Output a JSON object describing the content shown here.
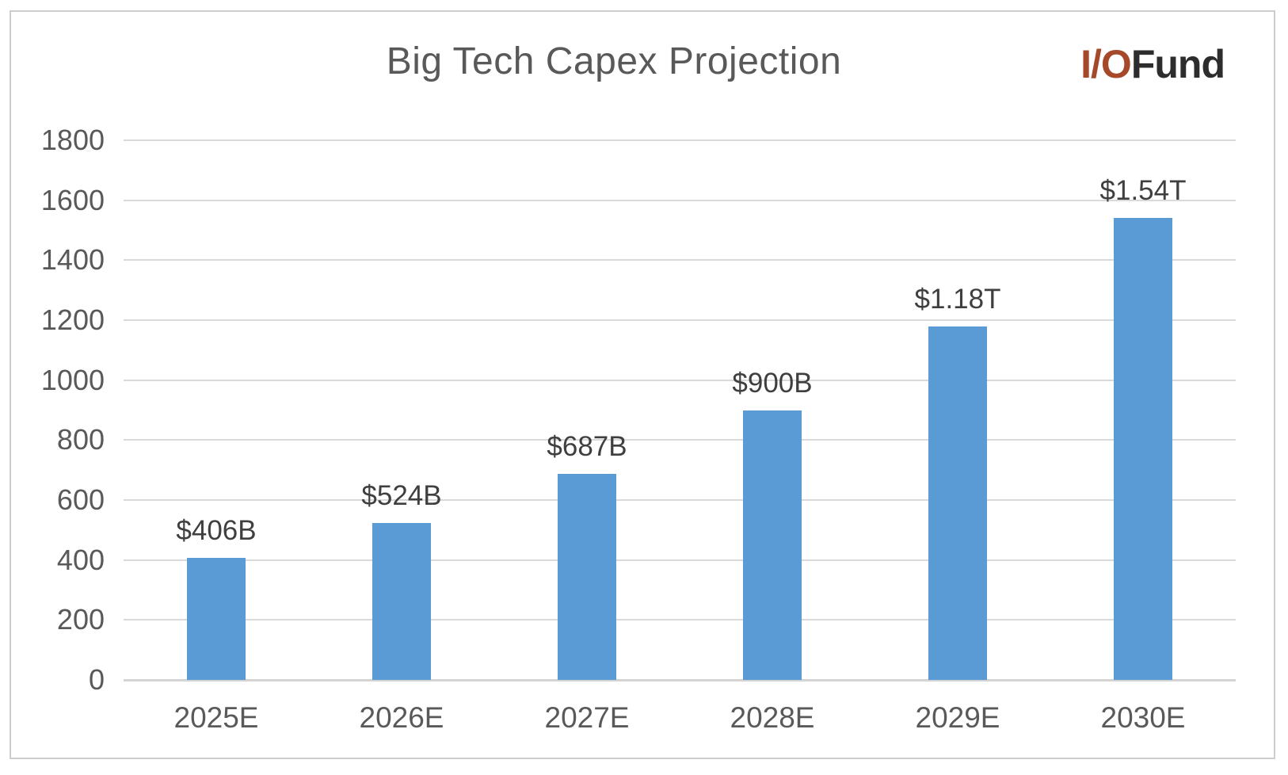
{
  "header": {
    "title": "Big Tech Capex Projection",
    "logo": {
      "part1": "I/O",
      "part2": "Fund",
      "part1_color": "#A5492A",
      "part2_color": "#2D2D2D"
    }
  },
  "chart_data": {
    "type": "bar",
    "title": "Big Tech Capex Projection",
    "categories": [
      "2025E",
      "2026E",
      "2027E",
      "2028E",
      "2029E",
      "2030E"
    ],
    "values": [
      406,
      524,
      687,
      900,
      1180,
      1540
    ],
    "data_labels": [
      "$406B",
      "$524B",
      "$687B",
      "$900B",
      "$1.18T",
      "$1.54T"
    ],
    "yticks": [
      0,
      200,
      400,
      600,
      800,
      1000,
      1200,
      1400,
      1600,
      1800
    ],
    "ylim": [
      0,
      1800
    ],
    "grid": true,
    "legend": false,
    "colors": {
      "bar": "#5B9BD5",
      "gridline": "#D9D9D9",
      "axis_line": "#D3D3D3",
      "tick_label": "#595959",
      "data_label": "#3F3F3F",
      "title": "#595959",
      "frame_border": "#CDCDCD"
    }
  }
}
